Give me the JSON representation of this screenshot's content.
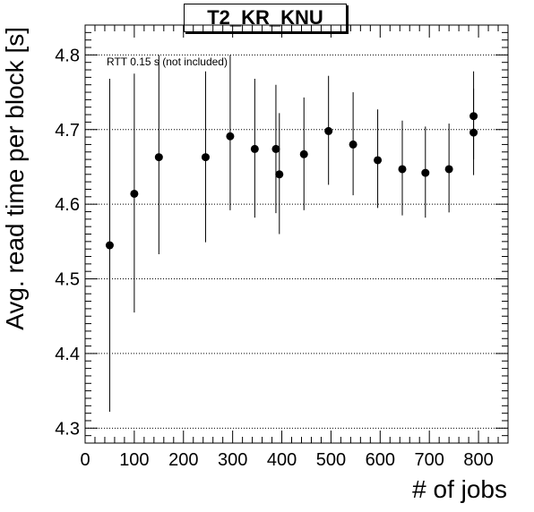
{
  "chart_data": {
    "type": "scatter",
    "title": "T2_KR_KNU",
    "xlabel": "# of jobs",
    "ylabel": "Avg. read time per block [s]",
    "annotation": "RTT 0.15 s (not included)",
    "xlim": [
      0,
      860
    ],
    "ylim": [
      4.28,
      4.84
    ],
    "x_ticks": [
      0,
      100,
      200,
      300,
      400,
      500,
      600,
      700,
      800
    ],
    "y_ticks": [
      4.3,
      4.4,
      4.5,
      4.6,
      4.7,
      4.8
    ],
    "grid": "horizontal-dotted",
    "x_tick_labels": [
      "0",
      "100",
      "200",
      "300",
      "400",
      "500",
      "600",
      "700",
      "800"
    ],
    "y_tick_labels": [
      "4.3",
      "4.4",
      "4.5",
      "4.6",
      "4.7",
      "4.8"
    ],
    "points": [
      {
        "x": 50,
        "y": 4.545,
        "lo": 4.322,
        "hi": 4.768
      },
      {
        "x": 100,
        "y": 4.614,
        "lo": 4.455,
        "hi": 4.775
      },
      {
        "x": 150,
        "y": 4.663,
        "lo": 4.533,
        "hi": 4.8
      },
      {
        "x": 245,
        "y": 4.663,
        "lo": 4.549,
        "hi": 4.778
      },
      {
        "x": 295,
        "y": 4.691,
        "lo": 4.592,
        "hi": 4.8
      },
      {
        "x": 345,
        "y": 4.674,
        "lo": 4.582,
        "hi": 4.768
      },
      {
        "x": 388,
        "y": 4.674,
        "lo": 4.588,
        "hi": 4.76
      },
      {
        "x": 395,
        "y": 4.64,
        "lo": 4.56,
        "hi": 4.722
      },
      {
        "x": 445,
        "y": 4.667,
        "lo": 4.592,
        "hi": 4.743
      },
      {
        "x": 495,
        "y": 4.698,
        "lo": 4.626,
        "hi": 4.772
      },
      {
        "x": 545,
        "y": 4.68,
        "lo": 4.612,
        "hi": 4.75
      },
      {
        "x": 595,
        "y": 4.659,
        "lo": 4.595,
        "hi": 4.727
      },
      {
        "x": 645,
        "y": 4.647,
        "lo": 4.585,
        "hi": 4.712
      },
      {
        "x": 692,
        "y": 4.642,
        "lo": 4.582,
        "hi": 4.704
      },
      {
        "x": 740,
        "y": 4.647,
        "lo": 4.589,
        "hi": 4.708
      },
      {
        "x": 790,
        "y": 4.718,
        "lo": 4.66,
        "hi": 4.778
      },
      {
        "x": 790,
        "y": 4.696,
        "lo": 4.639,
        "hi": 4.755
      }
    ]
  }
}
